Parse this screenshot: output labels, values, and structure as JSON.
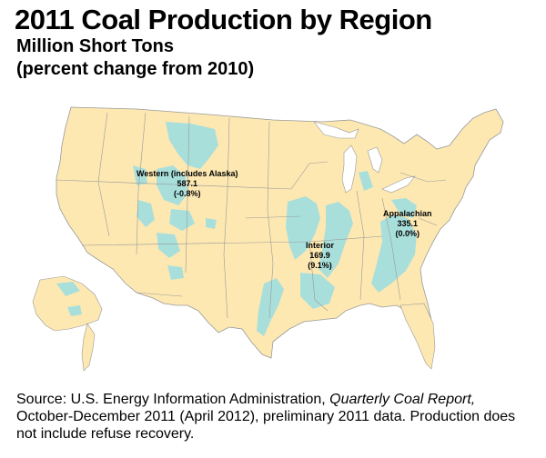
{
  "title": "2011 Coal Production by Region",
  "subtitle_line1": "Million Short Tons",
  "subtitle_line2": "(percent change from 2010)",
  "colors": {
    "land": "#fde8b2",
    "coal_basin": "#a9dfdb",
    "border": "#999999"
  },
  "regions": [
    {
      "name": "Western (includes Alaska)",
      "production": "587.1",
      "change": "(-0.8%)"
    },
    {
      "name": "Interior",
      "production": "169.9",
      "change": "(9.1%)"
    },
    {
      "name": "Appalachian",
      "production": "335.1",
      "change": "(0.0%)"
    }
  ],
  "source": {
    "prefix": "Source: U.S. Energy Information Administration, ",
    "report_title": "Quarterly Coal Report,",
    "suffix": " October-December 2011 (April 2012), preliminary 2011 data. Production does not include refuse recovery."
  }
}
